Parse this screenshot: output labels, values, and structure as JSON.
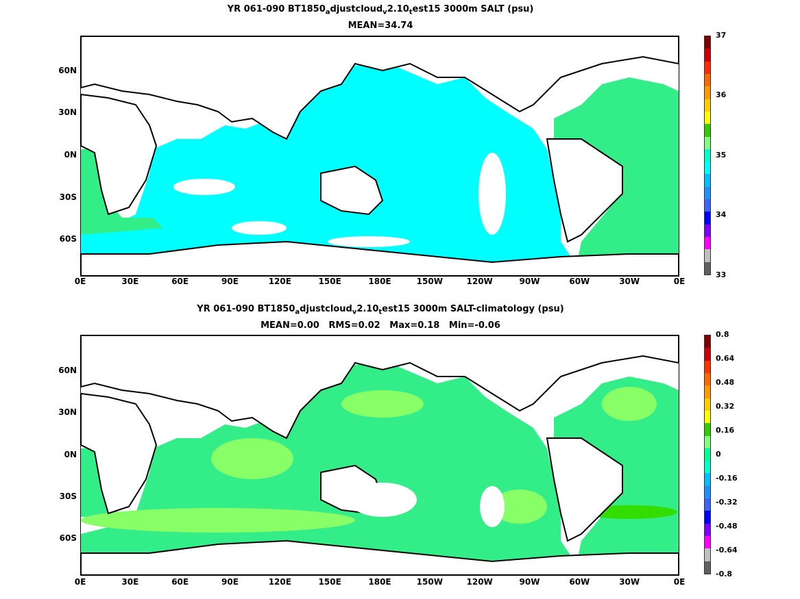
{
  "panels": [
    {
      "title_parts": [
        "YR 061-090 BT1850",
        "a",
        "djustcloud",
        "v",
        "2.10",
        "t",
        "est15 3000m SALT (psu)"
      ],
      "subtitle": "MEAN=34.74",
      "colorbar_labels": [
        "37",
        "36",
        "35",
        "34",
        "33"
      ],
      "colorbar_colors": [
        "#800000",
        "#cc0000",
        "#ff2a00",
        "#ff6a00",
        "#ff9900",
        "#ffcc00",
        "#ffff00",
        "#33cc00",
        "#80ff80",
        "#00ffcc",
        "#00ffff",
        "#00bfff",
        "#1e90ff",
        "#3c64ff",
        "#0000ff",
        "#8000ff",
        "#ff00ff",
        "#c0c0c0",
        "#606060"
      ],
      "ocean_color": "#00ffff",
      "accent_color": "#33ee88"
    },
    {
      "title_parts": [
        "YR 061-090 BT1850",
        "a",
        "djustcloud",
        "v",
        "2.10",
        "t",
        "est15 3000m SALT-climatology (psu)"
      ],
      "subtitle": "MEAN=0.00   RMS=0.02   Max=0.18   Min=-0.06",
      "colorbar_labels": [
        "0.8",
        "0.64",
        "0.48",
        "0.32",
        "0.16",
        "0",
        "-0.16",
        "-0.32",
        "-0.48",
        "-0.64",
        "-0.8"
      ],
      "colorbar_colors": [
        "#800000",
        "#cc0000",
        "#ff3300",
        "#ff6a00",
        "#ff9900",
        "#ffcc00",
        "#ffff00",
        "#33cc00",
        "#80ff80",
        "#00ff99",
        "#00ffcc",
        "#00bfff",
        "#1e90ff",
        "#3c64ff",
        "#0000ff",
        "#8000ff",
        "#ff00ff",
        "#c0c0c0",
        "#606060"
      ],
      "ocean_color": "#33ee88",
      "accent_color": "#88ff66"
    }
  ],
  "axes": {
    "lat_labels": [
      "60N",
      "30N",
      "0N",
      "30S",
      "60S"
    ],
    "lon_labels": [
      "0E",
      "30E",
      "60E",
      "90E",
      "120E",
      "150E",
      "180E",
      "150W",
      "120W",
      "90W",
      "60W",
      "30W",
      "0E"
    ]
  }
}
